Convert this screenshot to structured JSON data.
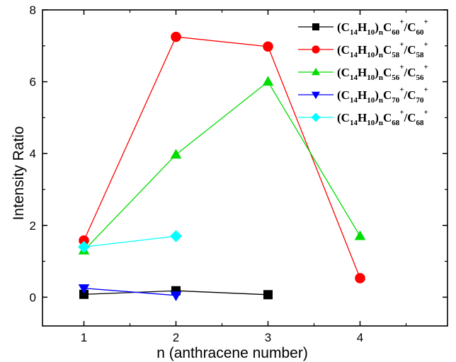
{
  "chart_data": {
    "type": "line",
    "xlabel": "n (anthracene number)",
    "ylabel": "Intensity Ratio",
    "xlim": [
      0.55,
      4.95
    ],
    "ylim": [
      -0.8,
      8
    ],
    "xticks": [
      1,
      2,
      3,
      4
    ],
    "xtick_labels": [
      "1",
      "2",
      "3",
      "4"
    ],
    "yticks": [
      0,
      2,
      4,
      6,
      8
    ],
    "ytick_labels": [
      "0",
      "2",
      "4",
      "6",
      "8"
    ],
    "grid": false,
    "legend_position": "top-right",
    "series": [
      {
        "legend": {
          "paren": "(C",
          "s1": "14",
          "h": "H",
          "s2": "10",
          "close": ")",
          "n": "n",
          "c": "C",
          "s3": "60",
          "sup1": "+",
          "slash": "/C",
          "s4": "60",
          "sup2": "+"
        },
        "color": "#000000",
        "marker": "square",
        "x": [
          1,
          2,
          3
        ],
        "y": [
          0.08,
          0.18,
          0.07
        ]
      },
      {
        "legend": {
          "paren": "(C",
          "s1": "14",
          "h": "H",
          "s2": "10",
          "close": ")",
          "n": "n",
          "c": "C",
          "s3": "58",
          "sup1": "+",
          "slash": "/C",
          "s4": "58",
          "sup2": "+"
        },
        "color": "#ff0000",
        "marker": "circle",
        "x": [
          1,
          2,
          3,
          4
        ],
        "y": [
          1.58,
          7.25,
          6.98,
          0.53
        ]
      },
      {
        "legend": {
          "paren": "(C",
          "s1": "14",
          "h": "H",
          "s2": "10",
          "close": ")",
          "n": "n",
          "c": "C",
          "s3": "56",
          "sup1": "+",
          "slash": "/C",
          "s4": "56",
          "sup2": "+"
        },
        "color": "#00dd00",
        "marker": "triangle-up",
        "x": [
          1,
          2,
          3,
          4
        ],
        "y": [
          1.3,
          3.97,
          6.0,
          1.7
        ]
      },
      {
        "legend": {
          "paren": "(C",
          "s1": "14",
          "h": "H",
          "s2": "10",
          "close": ")",
          "n": "n",
          "c": "C",
          "s3": "70",
          "sup1": "+",
          "slash": "/C",
          "s4": "70",
          "sup2": "+"
        },
        "color": "#0000ff",
        "marker": "triangle-down",
        "x": [
          1,
          2
        ],
        "y": [
          0.25,
          0.05
        ]
      },
      {
        "legend": {
          "paren": "(C",
          "s1": "14",
          "h": "H",
          "s2": "10",
          "close": ")",
          "n": "n",
          "c": "C",
          "s3": "68",
          "sup1": "+",
          "slash": "/C",
          "s4": "68",
          "sup2": "+"
        },
        "color": "#00ffff",
        "marker": "diamond",
        "x": [
          1,
          2
        ],
        "y": [
          1.4,
          1.7
        ]
      }
    ]
  }
}
